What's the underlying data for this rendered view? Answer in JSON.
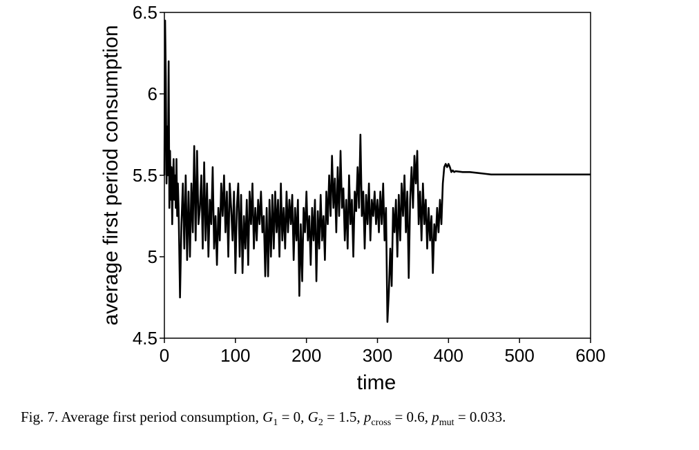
{
  "chart_data": {
    "type": "line",
    "title": "",
    "xlabel": "time",
    "ylabel": "average first period consumption",
    "xlim": [
      0,
      600
    ],
    "ylim": [
      4.5,
      6.5
    ],
    "xticks": [
      0,
      100,
      200,
      300,
      400,
      500,
      600
    ],
    "xtick_labels": [
      "0",
      "100",
      "200",
      "300",
      "400",
      "500",
      "600"
    ],
    "yticks": [
      4.5,
      5,
      5.5,
      6,
      6.5
    ],
    "ytick_labels": [
      "4.5",
      "5",
      "5.5",
      "6",
      "6.5"
    ],
    "grid": false,
    "series": [
      {
        "color": "#000000",
        "points": [
          [
            0,
            5.5
          ],
          [
            1,
            6.45
          ],
          [
            2,
            6.1
          ],
          [
            3,
            5.45
          ],
          [
            4,
            5.8
          ],
          [
            5,
            5.5
          ],
          [
            6,
            6.2
          ],
          [
            7,
            5.3
          ],
          [
            8,
            5.65
          ],
          [
            9,
            5.35
          ],
          [
            10,
            5.55
          ],
          [
            11,
            5.2
          ],
          [
            12,
            5.45
          ],
          [
            13,
            5.6
          ],
          [
            14,
            5.35
          ],
          [
            15,
            5.5
          ],
          [
            16,
            5.3
          ],
          [
            17,
            5.6
          ],
          [
            18,
            5.25
          ],
          [
            19,
            5.45
          ],
          [
            20,
            5.3
          ],
          [
            22,
            4.75
          ],
          [
            24,
            5.2
          ],
          [
            26,
            5.45
          ],
          [
            28,
            5.05
          ],
          [
            30,
            5.5
          ],
          [
            32,
            4.98
          ],
          [
            34,
            5.4
          ],
          [
            36,
            5.0
          ],
          [
            38,
            5.45
          ],
          [
            40,
            5.15
          ],
          [
            42,
            5.68
          ],
          [
            44,
            5.1
          ],
          [
            46,
            5.65
          ],
          [
            48,
            5.2
          ],
          [
            50,
            5.3
          ],
          [
            52,
            5.5
          ],
          [
            54,
            5.05
          ],
          [
            56,
            5.58
          ],
          [
            58,
            5.1
          ],
          [
            60,
            5.45
          ],
          [
            62,
            5.0
          ],
          [
            64,
            5.35
          ],
          [
            66,
            5.2
          ],
          [
            68,
            5.55
          ],
          [
            70,
            5.05
          ],
          [
            72,
            5.25
          ],
          [
            74,
            4.95
          ],
          [
            76,
            5.3
          ],
          [
            78,
            5.1
          ],
          [
            80,
            5.45
          ],
          [
            82,
            5.25
          ],
          [
            84,
            5.5
          ],
          [
            86,
            5.15
          ],
          [
            88,
            5.4
          ],
          [
            90,
            5.0
          ],
          [
            92,
            5.45
          ],
          [
            94,
            5.3
          ],
          [
            96,
            5.1
          ],
          [
            98,
            5.4
          ],
          [
            100,
            4.9
          ],
          [
            102,
            5.3
          ],
          [
            104,
            5.45
          ],
          [
            106,
            5.0
          ],
          [
            108,
            5.38
          ],
          [
            110,
            4.9
          ],
          [
            112,
            5.25
          ],
          [
            114,
            5.05
          ],
          [
            116,
            5.35
          ],
          [
            118,
            4.95
          ],
          [
            120,
            5.4
          ],
          [
            122,
            5.2
          ],
          [
            124,
            5.45
          ],
          [
            126,
            5.05
          ],
          [
            128,
            5.3
          ],
          [
            130,
            5.1
          ],
          [
            132,
            5.35
          ],
          [
            134,
            5.2
          ],
          [
            136,
            5.4
          ],
          [
            138,
            5.15
          ],
          [
            140,
            5.25
          ],
          [
            142,
            4.88
          ],
          [
            144,
            5.3
          ],
          [
            146,
            4.88
          ],
          [
            148,
            5.35
          ],
          [
            150,
            5.0
          ],
          [
            152,
            5.38
          ],
          [
            154,
            5.05
          ],
          [
            156,
            5.4
          ],
          [
            158,
            5.15
          ],
          [
            160,
            5.35
          ],
          [
            162,
            5.0
          ],
          [
            164,
            5.45
          ],
          [
            166,
            5.1
          ],
          [
            168,
            5.3
          ],
          [
            170,
            5.05
          ],
          [
            172,
            5.4
          ],
          [
            174,
            5.15
          ],
          [
            176,
            5.35
          ],
          [
            178,
            5.2
          ],
          [
            180,
            5.38
          ],
          [
            182,
            4.98
          ],
          [
            184,
            5.3
          ],
          [
            186,
            5.1
          ],
          [
            188,
            5.35
          ],
          [
            190,
            4.76
          ],
          [
            192,
            5.2
          ],
          [
            194,
            4.85
          ],
          [
            196,
            5.3
          ],
          [
            198,
            5.15
          ],
          [
            200,
            5.4
          ],
          [
            202,
            5.1
          ],
          [
            204,
            5.25
          ],
          [
            206,
            4.95
          ],
          [
            208,
            5.3
          ],
          [
            210,
            5.1
          ],
          [
            212,
            5.35
          ],
          [
            214,
            4.85
          ],
          [
            216,
            5.28
          ],
          [
            218,
            5.05
          ],
          [
            220,
            5.38
          ],
          [
            222,
            5.1
          ],
          [
            224,
            5.25
          ],
          [
            226,
            4.98
          ],
          [
            228,
            5.4
          ],
          [
            230,
            5.2
          ],
          [
            232,
            5.5
          ],
          [
            234,
            5.25
          ],
          [
            236,
            5.62
          ],
          [
            238,
            5.3
          ],
          [
            240,
            5.48
          ],
          [
            242,
            5.15
          ],
          [
            244,
            5.55
          ],
          [
            246,
            5.25
          ],
          [
            248,
            5.65
          ],
          [
            250,
            5.3
          ],
          [
            252,
            5.42
          ],
          [
            254,
            5.1
          ],
          [
            256,
            5.35
          ],
          [
            258,
            5.05
          ],
          [
            260,
            5.5
          ],
          [
            262,
            5.2
          ],
          [
            264,
            5.35
          ],
          [
            266,
            5.0
          ],
          [
            268,
            5.4
          ],
          [
            270,
            5.28
          ],
          [
            272,
            5.55
          ],
          [
            274,
            5.3
          ],
          [
            276,
            5.75
          ],
          [
            278,
            5.25
          ],
          [
            280,
            5.4
          ],
          [
            282,
            5.05
          ],
          [
            284,
            5.38
          ],
          [
            286,
            5.2
          ],
          [
            288,
            5.45
          ],
          [
            290,
            5.1
          ],
          [
            292,
            5.35
          ],
          [
            294,
            5.25
          ],
          [
            296,
            5.4
          ],
          [
            298,
            5.2
          ],
          [
            300,
            5.35
          ],
          [
            302,
            5.15
          ],
          [
            304,
            5.4
          ],
          [
            306,
            5.2
          ],
          [
            308,
            5.45
          ],
          [
            310,
            5.1
          ],
          [
            312,
            5.3
          ],
          [
            314,
            4.6
          ],
          [
            316,
            4.78
          ],
          [
            318,
            5.05
          ],
          [
            320,
            4.82
          ],
          [
            322,
            5.3
          ],
          [
            324,
            5.15
          ],
          [
            326,
            5.35
          ],
          [
            328,
            5.0
          ],
          [
            330,
            5.38
          ],
          [
            332,
            5.1
          ],
          [
            334,
            5.45
          ],
          [
            336,
            5.25
          ],
          [
            338,
            5.5
          ],
          [
            340,
            5.15
          ],
          [
            342,
            5.4
          ],
          [
            344,
            4.87
          ],
          [
            346,
            5.35
          ],
          [
            348,
            5.55
          ],
          [
            350,
            5.3
          ],
          [
            352,
            5.62
          ],
          [
            354,
            5.45
          ],
          [
            356,
            5.65
          ],
          [
            358,
            5.2
          ],
          [
            360,
            5.4
          ],
          [
            362,
            5.1
          ],
          [
            364,
            5.45
          ],
          [
            366,
            5.2
          ],
          [
            368,
            5.35
          ],
          [
            370,
            5.05
          ],
          [
            372,
            5.3
          ],
          [
            374,
            5.1
          ],
          [
            376,
            5.25
          ],
          [
            378,
            4.9
          ],
          [
            380,
            5.2
          ],
          [
            382,
            5.1
          ],
          [
            384,
            5.3
          ],
          [
            386,
            5.15
          ],
          [
            388,
            5.35
          ],
          [
            390,
            5.2
          ],
          [
            392,
            5.45
          ],
          [
            394,
            5.55
          ],
          [
            396,
            5.57
          ],
          [
            398,
            5.55
          ],
          [
            400,
            5.57
          ],
          [
            402,
            5.55
          ],
          [
            404,
            5.52
          ],
          [
            406,
            5.53
          ],
          [
            408,
            5.52
          ],
          [
            410,
            5.525
          ],
          [
            420,
            5.52
          ],
          [
            430,
            5.52
          ],
          [
            440,
            5.515
          ],
          [
            450,
            5.51
          ],
          [
            460,
            5.505
          ],
          [
            470,
            5.505
          ],
          [
            480,
            5.505
          ],
          [
            500,
            5.505
          ],
          [
            550,
            5.505
          ],
          [
            600,
            5.505
          ]
        ]
      }
    ]
  },
  "caption": {
    "lead": "Fig. 7.  Average first period consumption, ",
    "g1_label": "G",
    "g1_sub": "1",
    "g1_value": " = 0, ",
    "g2_label": "G",
    "g2_sub": "2",
    "g2_value": " = 1.5, ",
    "pcross_label": "p",
    "pcross_sub": "cross",
    "pcross_value": " = 0.6, ",
    "pmut_label": "p",
    "pmut_sub": "mut",
    "pmut_value": " = 0.033."
  }
}
